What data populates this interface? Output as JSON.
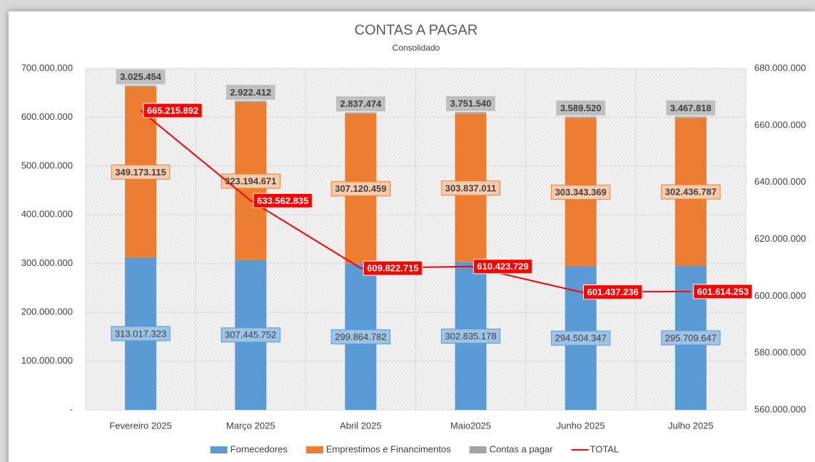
{
  "chart_data": {
    "type": "bar",
    "stacked": true,
    "title": "CONTAS A PAGAR",
    "subtitle": "Consolidado",
    "categories": [
      "Fevereiro 2025",
      "Março 2025",
      "Abril 2025",
      "Maio2025",
      "Junho 2025",
      "Julho 2025"
    ],
    "series": [
      {
        "name": "Fornecedores",
        "color": "#5b9bd5",
        "values": [
          313017323,
          307445752,
          299864782,
          302835178,
          294504347,
          295709647
        ],
        "value_labels": [
          "313.017.323",
          "307.445.752",
          "299.864.782",
          "302.835.178",
          "294.504.347",
          "295.709.647"
        ]
      },
      {
        "name": "Emprestimos e Financimentos",
        "color": "#ed7d31",
        "values": [
          349173115,
          323194671,
          307120459,
          303837011,
          303343369,
          302436787
        ],
        "value_labels": [
          "349.173.115",
          "323.194.671",
          "307.120.459",
          "303.837.011",
          "303.343.369",
          "302.436.787"
        ]
      },
      {
        "name": "Contas a pagar",
        "color": "#a5a5a5",
        "values": [
          3025454,
          2922412,
          2837474,
          3751540,
          3589520,
          3467818
        ],
        "value_labels": [
          "3.025.454",
          "2.922.412",
          "2.837.474",
          "3.751.540",
          "3.589.520",
          "3.467.818"
        ]
      },
      {
        "name": "TOTAL",
        "type": "line",
        "axis": "y2",
        "color": "#ff0000",
        "values": [
          665215892,
          633562835,
          609822715,
          610423729,
          601437236,
          601614253
        ],
        "value_labels": [
          "665.215.892",
          "633.562.835",
          "609.822.715",
          "610.423.729",
          "601.437.236",
          "601.614.253"
        ]
      }
    ],
    "ylim": [
      0,
      700000000
    ],
    "yticks": [
      {
        "value": 0,
        "label": "-"
      },
      {
        "value": 100000000,
        "label": "100.000.000"
      },
      {
        "value": 200000000,
        "label": "200.000.000"
      },
      {
        "value": 300000000,
        "label": "300.000.000"
      },
      {
        "value": 400000000,
        "label": "400.000.000"
      },
      {
        "value": 500000000,
        "label": "500.000.000"
      },
      {
        "value": 600000000,
        "label": "600.000.000"
      },
      {
        "value": 700000000,
        "label": "700.000.000"
      }
    ],
    "y2lim": [
      560000000,
      680000000
    ],
    "y2ticks": [
      {
        "value": 560000000,
        "label": "560.000.000"
      },
      {
        "value": 580000000,
        "label": "580.000.000"
      },
      {
        "value": 600000000,
        "label": "600.000.000"
      },
      {
        "value": 620000000,
        "label": "620.000.000"
      },
      {
        "value": 640000000,
        "label": "640.000.000"
      },
      {
        "value": 660000000,
        "label": "660.000.000"
      },
      {
        "value": 680000000,
        "label": "680.000.000"
      }
    ],
    "grid": true,
    "legend": "bottom"
  }
}
